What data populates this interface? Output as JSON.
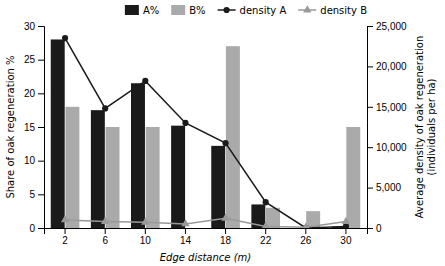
{
  "chart_data": {
    "type": "bar",
    "categories": [
      "2",
      "6",
      "10",
      "14",
      "18",
      "22",
      "26",
      "30"
    ],
    "xlabel": "Edge distance (m)",
    "ylabel": "Share of oak regeneration %",
    "y2label": "Average density of oak regeneration\n(individuals per ha)",
    "series": [
      {
        "name": "A%",
        "type": "bar",
        "color": "#1a1a1a",
        "values": [
          28,
          17.5,
          21.5,
          15.2,
          12.2,
          3.5,
          0.0,
          0.2
        ]
      },
      {
        "name": "B%",
        "type": "bar",
        "color": "#aaaaaa",
        "values": [
          18,
          15,
          15,
          0.0,
          27,
          3.0,
          2.5,
          15
        ]
      },
      {
        "name": "density A",
        "type": "line",
        "axis": "y2",
        "color": "#1a1a1a",
        "marker": "circle",
        "values": [
          23500,
          14800,
          18200,
          13000,
          10500,
          3200,
          0.0,
          200
        ]
      },
      {
        "name": "density B",
        "type": "line",
        "axis": "y2",
        "color": "#999999",
        "marker": "triangle",
        "values": [
          1000,
          800,
          700,
          500,
          1200,
          200,
          100,
          800
        ]
      }
    ],
    "ylim": [
      0,
      30
    ],
    "yticks": [
      0,
      5,
      10,
      15,
      20,
      25,
      30
    ],
    "y2lim": [
      0,
      25000
    ],
    "y2ticks": [
      0,
      {
        "value": 5000,
        "label": "5,000"
      },
      {
        "value": 10000,
        "label": "10,000"
      },
      {
        "value": 15000,
        "label": "15,000"
      },
      {
        "value": 20000,
        "label": "20,000"
      },
      {
        "value": 25000,
        "label": "25,000"
      }
    ],
    "grid": false,
    "legend": "upper right"
  }
}
